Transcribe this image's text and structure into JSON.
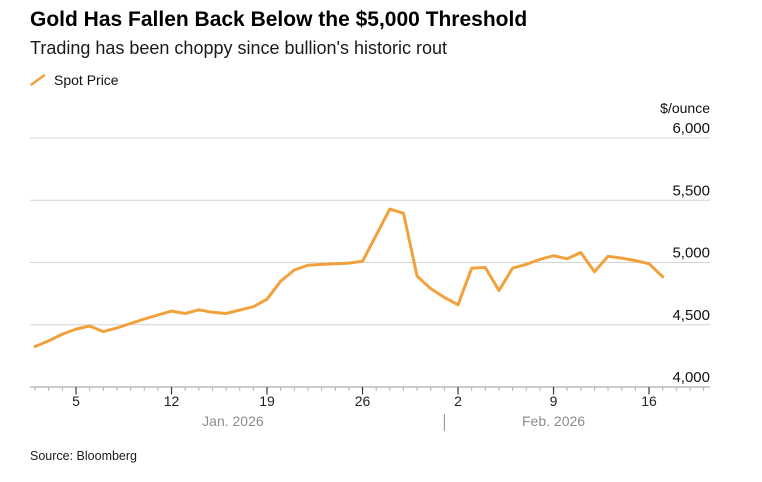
{
  "footer": {
    "source": "Source: Bloomberg"
  },
  "chart_data": {
    "type": "line",
    "title": "Gold Has Fallen Back Below the $5,000 Threshold",
    "subtitle": "Trading has been choppy since bullion's historic rout",
    "unit_label": "$/ounce",
    "xlabel": "",
    "ylabel": "$/ounce",
    "ylim": [
      4000,
      6000
    ],
    "grid": true,
    "legend_position": "top-left",
    "yticks": [
      4000,
      4500,
      5000,
      5500,
      6000
    ],
    "ytick_labels": [
      "4,000",
      "4,500",
      "5,000",
      "5,500",
      "6,000"
    ],
    "series": [
      {
        "name": "Spot Price",
        "color": "#F2A13C",
        "dates": [
          "Jan 2",
          "Jan 3",
          "Jan 4",
          "Jan 5",
          "Jan 6",
          "Jan 7",
          "Jan 8",
          "Jan 9",
          "Jan 10",
          "Jan 11",
          "Jan 12",
          "Jan 13",
          "Jan 14",
          "Jan 15",
          "Jan 16",
          "Jan 17",
          "Jan 18",
          "Jan 19",
          "Jan 20",
          "Jan 21",
          "Jan 22",
          "Jan 23",
          "Jan 24",
          "Jan 25",
          "Jan 26",
          "Jan 27",
          "Jan 28",
          "Jan 29",
          "Jan 30",
          "Jan 31",
          "Feb 1",
          "Feb 2",
          "Feb 3",
          "Feb 4",
          "Feb 5",
          "Feb 6",
          "Feb 7",
          "Feb 8",
          "Feb 9",
          "Feb 10",
          "Feb 11",
          "Feb 12",
          "Feb 13",
          "Feb 14",
          "Feb 15",
          "Feb 16",
          "Feb 17"
        ],
        "values": [
          4325,
          4370,
          4425,
          4465,
          4490,
          4445,
          4475,
          4510,
          4545,
          4578,
          4610,
          4590,
          4620,
          4600,
          4590,
          4618,
          4645,
          4705,
          4850,
          4940,
          4978,
          4985,
          4990,
          4995,
          5010,
          5220,
          5430,
          5395,
          4890,
          4790,
          4720,
          4660,
          4955,
          4960,
          4775,
          4955,
          4985,
          5025,
          5055,
          5030,
          5080,
          4925,
          5050,
          5035,
          5015,
          4990,
          4885
        ]
      }
    ],
    "x_axis": {
      "major_ticks": [
        {
          "index": 3,
          "label": "5"
        },
        {
          "index": 10,
          "label": "12"
        },
        {
          "index": 17,
          "label": "19"
        },
        {
          "index": 24,
          "label": "26"
        },
        {
          "index": 31,
          "label": "2"
        },
        {
          "index": 38,
          "label": "9"
        },
        {
          "index": 45,
          "label": "16"
        }
      ],
      "minor_tick_count": 50,
      "months": [
        {
          "label": "Jan. 2026",
          "start_index": 0,
          "end_index": 29
        },
        {
          "label": "Feb. 2026",
          "start_index": 30,
          "end_index": 46
        }
      ],
      "month_divider_index": 30
    },
    "colors": {
      "line": "#F2A13C",
      "gridline": "#d4d4d4",
      "axis": "#999999",
      "minor_tick": "#b3b3b3",
      "major_tick": "#3a3a3a",
      "day_label": "#1f1f1f",
      "month_label": "#8c8c8c",
      "y_label": "#111111"
    }
  }
}
